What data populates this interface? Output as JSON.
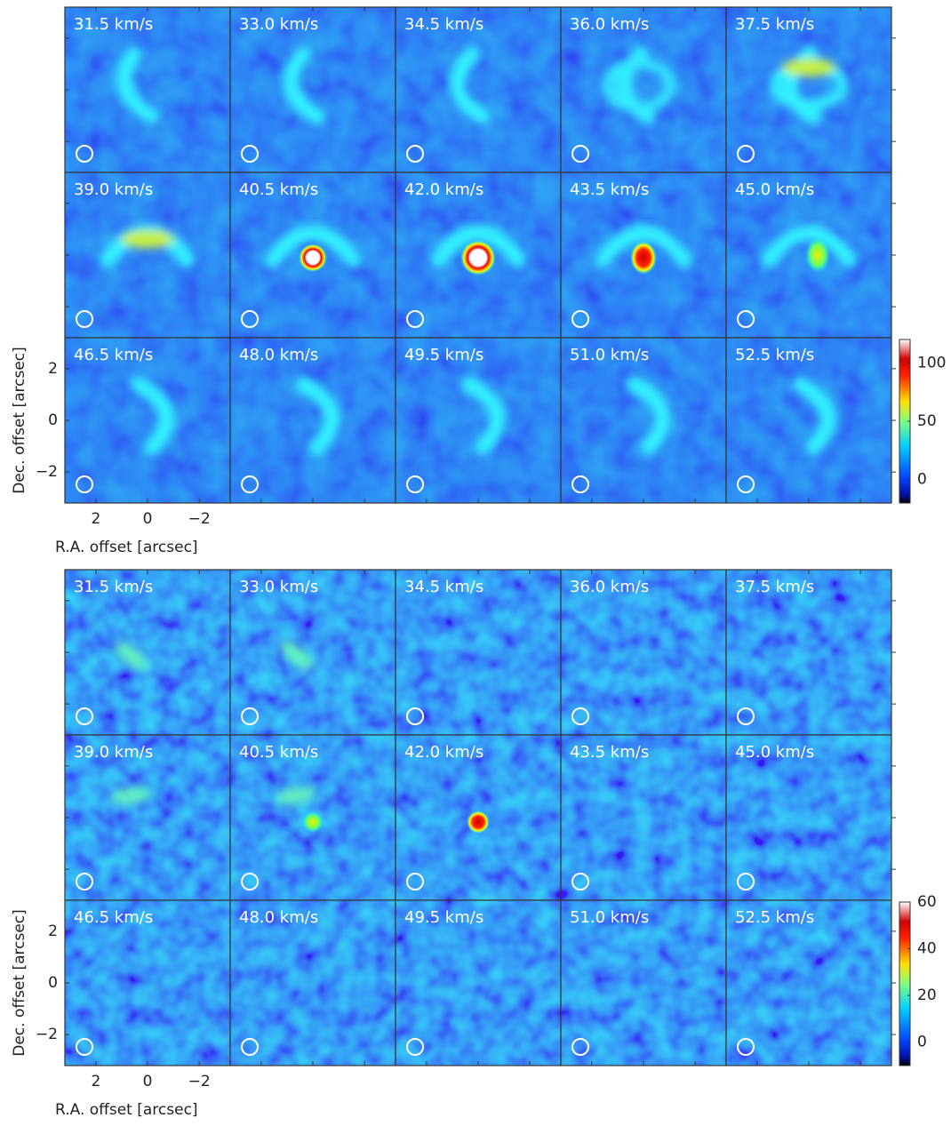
{
  "chart_data": [
    {
      "type": "channel-map",
      "panel_labels": [
        "31.5 km/s",
        "33.0 km/s",
        "34.5 km/s",
        "36.0 km/s",
        "37.5 km/s",
        "39.0 km/s",
        "40.5 km/s",
        "42.0 km/s",
        "43.5 km/s",
        "45.0 km/s",
        "46.5 km/s",
        "48.0 km/s",
        "49.5 km/s",
        "51.0 km/s",
        "52.5 km/s"
      ],
      "xlabel": "R.A. offset [arcsec]",
      "ylabel": "Dec. offset [arcsec]",
      "xlim": [
        3.2,
        -3.2
      ],
      "ylim": [
        -3.2,
        3.2
      ],
      "xticks": [
        2,
        0,
        {
          "value": -2,
          "label": "−2"
        }
      ],
      "yticks": [
        {
          "value": -2,
          "label": "−2"
        },
        0,
        2
      ],
      "colorbar": {
        "lim": [
          -20,
          120
        ],
        "ticks": [
          0,
          50,
          100
        ]
      }
    },
    {
      "type": "channel-map",
      "panel_labels": [
        "31.5 km/s",
        "33.0 km/s",
        "34.5 km/s",
        "36.0 km/s",
        "37.5 km/s",
        "39.0 km/s",
        "40.5 km/s",
        "42.0 km/s",
        "43.5 km/s",
        "45.0 km/s",
        "46.5 km/s",
        "48.0 km/s",
        "49.5 km/s",
        "51.0 km/s",
        "52.5 km/s"
      ],
      "xlabel": "R.A. offset [arcsec]",
      "ylabel": "Dec. offset [arcsec]",
      "xlim": [
        3.2,
        -3.2
      ],
      "ylim": [
        -3.2,
        3.2
      ],
      "xticks": [
        2,
        0,
        {
          "value": -2,
          "label": "−2"
        }
      ],
      "yticks": [
        {
          "value": -2,
          "label": "−2"
        },
        0,
        2
      ],
      "colorbar": {
        "lim": [
          -10,
          60
        ],
        "ticks": [
          0,
          20,
          40,
          60
        ]
      }
    }
  ]
}
